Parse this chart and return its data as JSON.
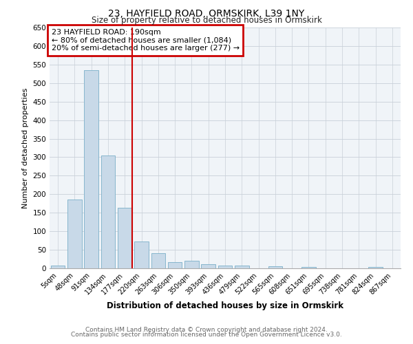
{
  "title": "23, HAYFIELD ROAD, ORMSKIRK, L39 1NY",
  "subtitle": "Size of property relative to detached houses in Ormskirk",
  "xlabel": "Distribution of detached houses by size in Ormskirk",
  "ylabel": "Number of detached properties",
  "bar_labels": [
    "5sqm",
    "48sqm",
    "91sqm",
    "134sqm",
    "177sqm",
    "220sqm",
    "263sqm",
    "306sqm",
    "350sqm",
    "393sqm",
    "436sqm",
    "479sqm",
    "522sqm",
    "565sqm",
    "608sqm",
    "651sqm",
    "695sqm",
    "738sqm",
    "781sqm",
    "824sqm",
    "867sqm"
  ],
  "bar_heights": [
    8,
    185,
    535,
    305,
    163,
    73,
    40,
    17,
    20,
    12,
    8,
    8,
    0,
    5,
    0,
    3,
    0,
    0,
    0,
    3,
    0
  ],
  "bar_color": "#c8d9e8",
  "bar_edge_color": "#7aafc8",
  "vline_color": "#cc0000",
  "vline_pos": 4.45,
  "annotation_title": "23 HAYFIELD ROAD: 190sqm",
  "annotation_line1": "← 80% of detached houses are smaller (1,084)",
  "annotation_line2": "20% of semi-detached houses are larger (277) →",
  "annotation_box_color": "#cc0000",
  "ylim": [
    0,
    650
  ],
  "yticks": [
    0,
    50,
    100,
    150,
    200,
    250,
    300,
    350,
    400,
    450,
    500,
    550,
    600,
    650
  ],
  "plot_bg_color": "#f0f4f8",
  "footer_line1": "Contains HM Land Registry data © Crown copyright and database right 2024.",
  "footer_line2": "Contains public sector information licensed under the Open Government Licence v3.0."
}
